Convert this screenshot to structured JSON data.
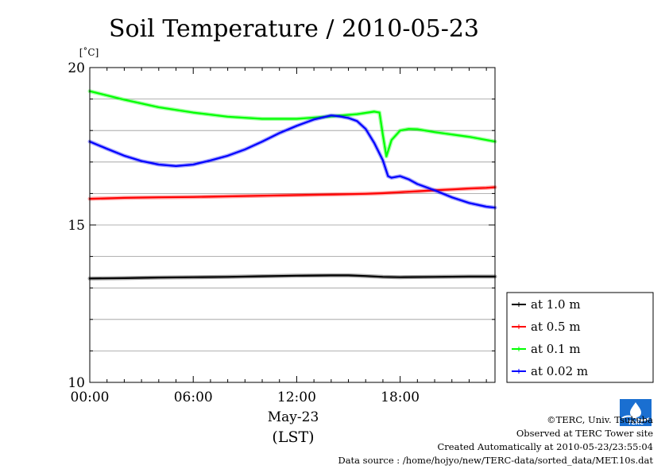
{
  "chart_data": {
    "type": "line",
    "title": "Soil Temperature / 2010-05-23",
    "ylabel": "[˚C]",
    "ylim": [
      10,
      20
    ],
    "yticks": [
      10,
      15,
      20
    ],
    "xlim": [
      0,
      23.5
    ],
    "xticks": [
      {
        "value": 0,
        "label": "00:00"
      },
      {
        "value": 6,
        "label": "06:00"
      },
      {
        "value": 12,
        "label": "12:00"
      },
      {
        "value": 18,
        "label": "18:00"
      }
    ],
    "xsublabel": "May-23",
    "xunit": "(LST)",
    "grid": true,
    "legend_position": "right",
    "series": [
      {
        "name": "at 1.0 m",
        "color": "#000000",
        "x": [
          0,
          2,
          4,
          6,
          8,
          10,
          12,
          14,
          15,
          16,
          17,
          18,
          20,
          22,
          23.5
        ],
        "y": [
          13.3,
          13.31,
          13.33,
          13.34,
          13.35,
          13.37,
          13.39,
          13.4,
          13.4,
          13.38,
          13.35,
          13.34,
          13.35,
          13.36,
          13.36
        ]
      },
      {
        "name": "at 0.5 m",
        "color": "#ff0000",
        "x": [
          0,
          2,
          4,
          6,
          8,
          10,
          12,
          14,
          16,
          17,
          18,
          19,
          20,
          21,
          22,
          23,
          23.5
        ],
        "y": [
          15.83,
          15.86,
          15.88,
          15.89,
          15.91,
          15.93,
          15.95,
          15.97,
          15.99,
          16.01,
          16.04,
          16.07,
          16.1,
          16.13,
          16.16,
          16.18,
          16.2
        ]
      },
      {
        "name": "at 0.1 m",
        "color": "#00ff00",
        "x": [
          0,
          2,
          4,
          6,
          8,
          10,
          12,
          14,
          15.5,
          16.5,
          16.8,
          17.0,
          17.2,
          17.5,
          18.0,
          18.5,
          19.0,
          20,
          22,
          23.5
        ],
        "y": [
          19.25,
          18.98,
          18.74,
          18.57,
          18.44,
          18.37,
          18.37,
          18.45,
          18.52,
          18.6,
          18.57,
          17.85,
          17.18,
          17.7,
          18.0,
          18.05,
          18.04,
          17.95,
          17.8,
          17.65
        ]
      },
      {
        "name": "at 0.02 m",
        "color": "#0000ff",
        "x": [
          0,
          1,
          2,
          3,
          4,
          5,
          6,
          7,
          8,
          9,
          10,
          11,
          12,
          13,
          14,
          14.5,
          15,
          15.5,
          16,
          16.5,
          17,
          17.3,
          17.5,
          18,
          18.5,
          19,
          20,
          21,
          22,
          23,
          23.5
        ],
        "y": [
          17.65,
          17.42,
          17.2,
          17.03,
          16.92,
          16.87,
          16.92,
          17.05,
          17.2,
          17.4,
          17.65,
          17.92,
          18.15,
          18.35,
          18.48,
          18.45,
          18.4,
          18.3,
          18.05,
          17.6,
          17.05,
          16.55,
          16.5,
          16.55,
          16.45,
          16.3,
          16.1,
          15.88,
          15.7,
          15.58,
          15.55
        ]
      }
    ]
  },
  "footer": {
    "copyright": "©TERC, Univ. Tsukuba",
    "site": "Observed at TERC Tower site",
    "created": "Created Automatically at 2010-05-23/23:55:04",
    "source": "Data source : /home/hojyo/new/TERC-data/sorted_data/MET.10s.dat",
    "logo_text": "TERC"
  }
}
